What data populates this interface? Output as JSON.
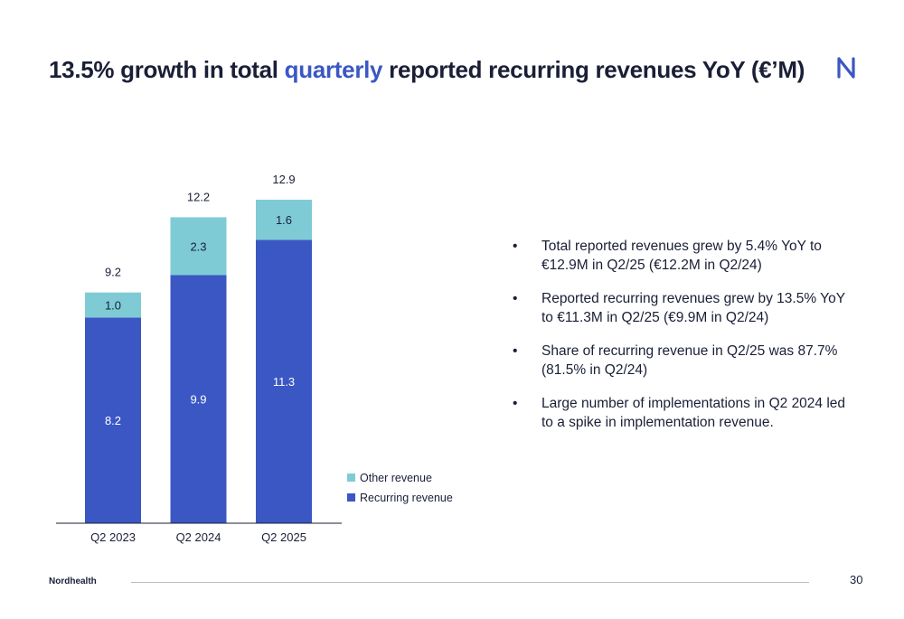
{
  "title": {
    "part1": "13.5% growth in total ",
    "accent": "quarterly",
    "part2": " reported recurring revenues YoY (€’M)"
  },
  "logo_icon": "nordhealth-logo-icon",
  "colors": {
    "accent": "#3b57c4",
    "recurring": "#3b57c4",
    "other": "#7ecbd6",
    "text": "#1a1f36"
  },
  "chart_data": {
    "type": "bar",
    "stacked": true,
    "categories": [
      "Q2 2023",
      "Q2 2024",
      "Q2 2025"
    ],
    "series": [
      {
        "name": "Recurring revenue",
        "values": [
          8.2,
          9.9,
          11.3
        ]
      },
      {
        "name": "Other revenue",
        "values": [
          1.0,
          2.3,
          1.6
        ]
      }
    ],
    "totals": [
      9.2,
      12.2,
      12.9
    ],
    "ylim": [
      0,
      13
    ],
    "legend_position": "right",
    "grid": false,
    "xlabel": "",
    "ylabel": ""
  },
  "bullets": [
    "Total reported revenues grew by 5.4% YoY to €12.9M in Q2/25 (€12.2M in Q2/24)",
    "Reported recurring revenues grew by 13.5% YoY to €11.3M in Q2/25 (€9.9M in Q2/24)",
    "Share of recurring revenue in Q2/25 was 87.7% (81.5% in Q2/24)",
    "Large number of implementations in Q2 2024 led to a spike in implementation revenue."
  ],
  "bullet_char": "•",
  "footer": {
    "brand": "Nordhealth",
    "page": "30"
  }
}
